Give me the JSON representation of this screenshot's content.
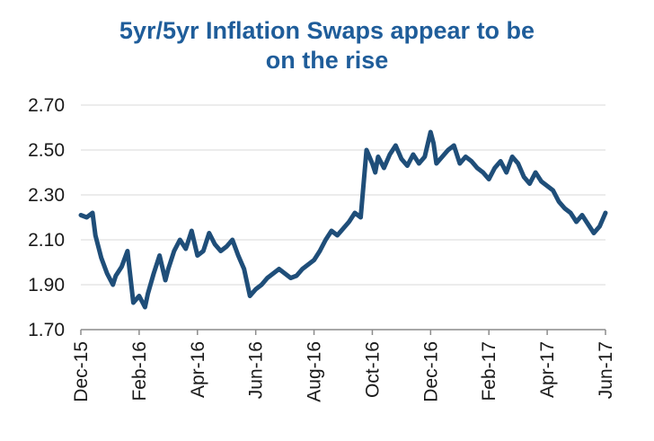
{
  "chart_data": {
    "type": "line",
    "title_lines": [
      "5yr/5yr Inflation Swaps appear to be",
      "on the rise"
    ],
    "xlabel": "",
    "ylabel": "",
    "ylim": [
      1.7,
      2.7
    ],
    "y_ticks": [
      "1.70",
      "1.90",
      "2.10",
      "2.30",
      "2.50",
      "2.70"
    ],
    "x_ticks": [
      "Dec-15",
      "Feb-16",
      "Apr-16",
      "Jun-16",
      "Aug-16",
      "Oct-16",
      "Dec-16",
      "Feb-17",
      "Apr-17",
      "Jun-17"
    ],
    "grid": true,
    "series": [
      {
        "name": "5yr/5yr Inflation Swap",
        "color": "#1f4e79",
        "x": [
          0,
          0.1,
          0.2,
          0.25,
          0.35,
          0.45,
          0.55,
          0.6,
          0.7,
          0.8,
          0.9,
          1.0,
          1.1,
          1.15,
          1.25,
          1.35,
          1.45,
          1.5,
          1.6,
          1.7,
          1.8,
          1.9,
          2.0,
          2.1,
          2.2,
          2.3,
          2.4,
          2.5,
          2.6,
          2.7,
          2.8,
          2.9,
          3.0,
          3.1,
          3.2,
          3.3,
          3.4,
          3.5,
          3.6,
          3.7,
          3.8,
          3.9,
          4.0,
          4.1,
          4.2,
          4.3,
          4.4,
          4.5,
          4.6,
          4.7,
          4.8,
          4.9,
          5.0,
          5.05,
          5.1,
          5.2,
          5.3,
          5.4,
          5.5,
          5.6,
          5.7,
          5.8,
          5.9,
          6.0,
          6.05,
          6.1,
          6.2,
          6.3,
          6.4,
          6.5,
          6.6,
          6.7,
          6.8,
          6.9,
          7.0,
          7.1,
          7.2,
          7.3,
          7.4,
          7.5,
          7.6,
          7.7,
          7.8,
          7.9,
          8.0,
          8.1,
          8.2,
          8.3,
          8.4,
          8.5,
          8.6,
          8.7,
          8.8,
          8.9,
          9.0
        ],
        "values": [
          2.21,
          2.2,
          2.22,
          2.12,
          2.02,
          1.95,
          1.9,
          1.94,
          1.98,
          2.05,
          1.82,
          1.85,
          1.8,
          1.86,
          1.95,
          2.03,
          1.92,
          1.97,
          2.05,
          2.1,
          2.06,
          2.14,
          2.03,
          2.05,
          2.13,
          2.08,
          2.05,
          2.07,
          2.1,
          2.03,
          1.97,
          1.85,
          1.88,
          1.9,
          1.93,
          1.95,
          1.97,
          1.95,
          1.93,
          1.94,
          1.97,
          1.99,
          2.01,
          2.05,
          2.1,
          2.14,
          2.12,
          2.15,
          2.18,
          2.22,
          2.2,
          2.5,
          2.44,
          2.4,
          2.47,
          2.42,
          2.48,
          2.52,
          2.46,
          2.43,
          2.48,
          2.44,
          2.47,
          2.58,
          2.53,
          2.44,
          2.47,
          2.5,
          2.52,
          2.44,
          2.47,
          2.45,
          2.42,
          2.4,
          2.37,
          2.42,
          2.45,
          2.4,
          2.47,
          2.44,
          2.38,
          2.35,
          2.4,
          2.36,
          2.34,
          2.32,
          2.27,
          2.24,
          2.22,
          2.18,
          2.21,
          2.17,
          2.13,
          2.16,
          2.22
        ]
      }
    ]
  }
}
